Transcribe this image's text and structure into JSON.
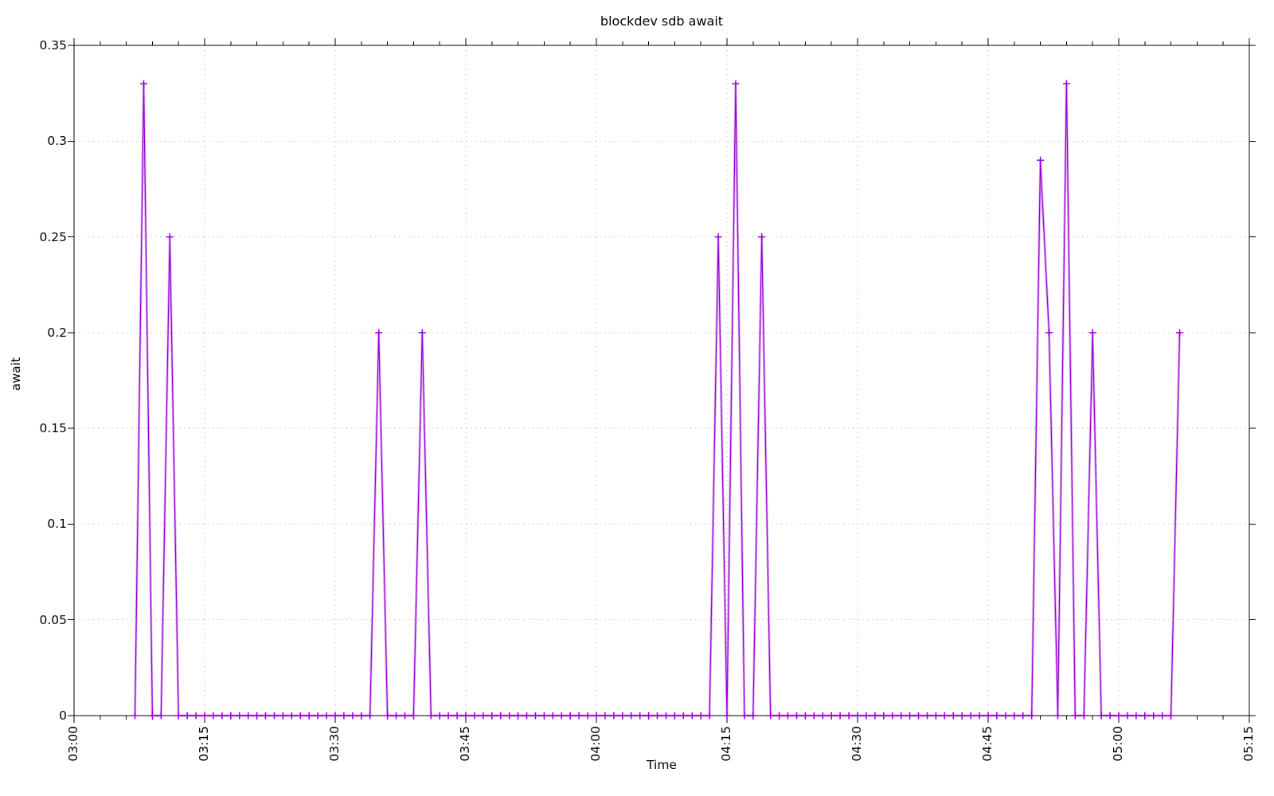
{
  "window": {
    "background": "#ffffff"
  },
  "chart_data": {
    "type": "line",
    "title": "blockdev sdb await",
    "xlabel": "Time",
    "ylabel": "await",
    "legend": "none",
    "grid": true,
    "series_color": "#9400d3",
    "grid_color": "#c6c6c6",
    "axis_color": "#000000",
    "marker": "plus",
    "xlim": [
      "03:00",
      "05:15"
    ],
    "ylim": [
      0,
      0.35
    ],
    "x_major_ticks": [
      "03:00",
      "03:15",
      "03:30",
      "03:45",
      "04:00",
      "04:15",
      "04:30",
      "04:45",
      "05:00",
      "05:15"
    ],
    "x_minor_tick_interval_minutes": 3,
    "y_ticks": [
      0,
      0.05,
      0.1,
      0.15,
      0.2,
      0.25,
      0.3,
      0.35
    ],
    "y_tick_labels": [
      "0",
      "0.05",
      "0.1",
      "0.15",
      "0.2",
      "0.25",
      "0.3",
      "0.35"
    ],
    "points": [
      [
        "03:07",
        0
      ],
      [
        "03:08",
        0.33
      ],
      [
        "03:09",
        0
      ],
      [
        "03:10",
        0
      ],
      [
        "03:11",
        0.25
      ],
      [
        "03:12",
        0
      ],
      [
        "03:13",
        0
      ],
      [
        "03:14",
        0
      ],
      [
        "03:15",
        0
      ],
      [
        "03:16",
        0
      ],
      [
        "03:17",
        0
      ],
      [
        "03:18",
        0
      ],
      [
        "03:19",
        0
      ],
      [
        "03:20",
        0
      ],
      [
        "03:21",
        0
      ],
      [
        "03:22",
        0
      ],
      [
        "03:23",
        0
      ],
      [
        "03:24",
        0
      ],
      [
        "03:25",
        0
      ],
      [
        "03:26",
        0
      ],
      [
        "03:27",
        0
      ],
      [
        "03:28",
        0
      ],
      [
        "03:29",
        0
      ],
      [
        "03:30",
        0
      ],
      [
        "03:31",
        0
      ],
      [
        "03:32",
        0
      ],
      [
        "03:33",
        0
      ],
      [
        "03:34",
        0
      ],
      [
        "03:35",
        0.2
      ],
      [
        "03:36",
        0
      ],
      [
        "03:37",
        0
      ],
      [
        "03:38",
        0
      ],
      [
        "03:39",
        0
      ],
      [
        "03:40",
        0.2
      ],
      [
        "03:41",
        0
      ],
      [
        "03:42",
        0
      ],
      [
        "03:43",
        0
      ],
      [
        "03:44",
        0
      ],
      [
        "03:45",
        0
      ],
      [
        "03:46",
        0
      ],
      [
        "03:47",
        0
      ],
      [
        "03:48",
        0
      ],
      [
        "03:49",
        0
      ],
      [
        "03:50",
        0
      ],
      [
        "03:51",
        0
      ],
      [
        "03:52",
        0
      ],
      [
        "03:53",
        0
      ],
      [
        "03:54",
        0
      ],
      [
        "03:55",
        0
      ],
      [
        "03:56",
        0
      ],
      [
        "03:57",
        0
      ],
      [
        "03:58",
        0
      ],
      [
        "03:59",
        0
      ],
      [
        "04:00",
        0
      ],
      [
        "04:01",
        0
      ],
      [
        "04:02",
        0
      ],
      [
        "04:03",
        0
      ],
      [
        "04:04",
        0
      ],
      [
        "04:05",
        0
      ],
      [
        "04:06",
        0
      ],
      [
        "04:07",
        0
      ],
      [
        "04:08",
        0
      ],
      [
        "04:09",
        0
      ],
      [
        "04:10",
        0
      ],
      [
        "04:11",
        0
      ],
      [
        "04:12",
        0
      ],
      [
        "04:13",
        0
      ],
      [
        "04:14",
        0.25
      ],
      [
        "04:15",
        0
      ],
      [
        "04:16",
        0.33
      ],
      [
        "04:17",
        0
      ],
      [
        "04:18",
        0
      ],
      [
        "04:19",
        0.25
      ],
      [
        "04:20",
        0
      ],
      [
        "04:21",
        0
      ],
      [
        "04:22",
        0
      ],
      [
        "04:23",
        0
      ],
      [
        "04:24",
        0
      ],
      [
        "04:25",
        0
      ],
      [
        "04:26",
        0
      ],
      [
        "04:27",
        0
      ],
      [
        "04:28",
        0
      ],
      [
        "04:29",
        0
      ],
      [
        "04:30",
        0
      ],
      [
        "04:31",
        0
      ],
      [
        "04:32",
        0
      ],
      [
        "04:33",
        0
      ],
      [
        "04:34",
        0
      ],
      [
        "04:35",
        0
      ],
      [
        "04:36",
        0
      ],
      [
        "04:37",
        0
      ],
      [
        "04:38",
        0
      ],
      [
        "04:39",
        0
      ],
      [
        "04:40",
        0
      ],
      [
        "04:41",
        0
      ],
      [
        "04:42",
        0
      ],
      [
        "04:43",
        0
      ],
      [
        "04:44",
        0
      ],
      [
        "04:45",
        0
      ],
      [
        "04:46",
        0
      ],
      [
        "04:47",
        0
      ],
      [
        "04:48",
        0
      ],
      [
        "04:49",
        0
      ],
      [
        "04:50",
        0
      ],
      [
        "04:51",
        0.29
      ],
      [
        "04:52",
        0.2
      ],
      [
        "04:53",
        0
      ],
      [
        "04:54",
        0.33
      ],
      [
        "04:55",
        0
      ],
      [
        "04:56",
        0
      ],
      [
        "04:57",
        0.2
      ],
      [
        "04:58",
        0
      ],
      [
        "04:59",
        0
      ],
      [
        "05:00",
        0
      ],
      [
        "05:01",
        0
      ],
      [
        "05:02",
        0
      ],
      [
        "05:03",
        0
      ],
      [
        "05:04",
        0
      ],
      [
        "05:05",
        0
      ],
      [
        "05:06",
        0
      ],
      [
        "05:07",
        0.2
      ]
    ]
  }
}
